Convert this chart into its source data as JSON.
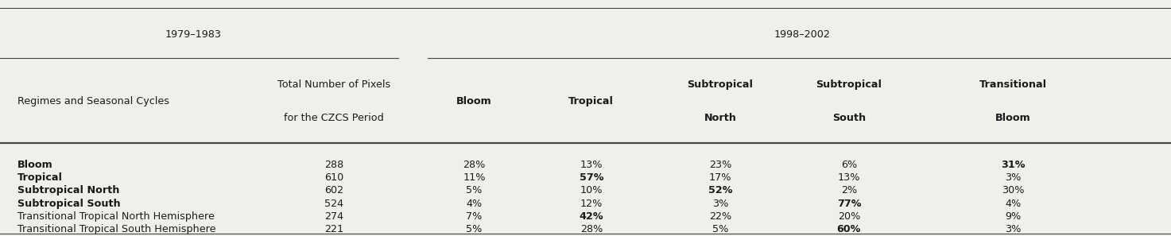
{
  "period1": "1979–1983",
  "period2": "1998–2002",
  "col_headers_line1": [
    "Regimes and Seasonal Cycles",
    "Total Number of Pixels",
    "Bloom",
    "Tropical",
    "Subtropical",
    "Subtropical",
    "Transitional"
  ],
  "col_headers_line2": [
    "",
    "for the CZCS Period",
    "",
    "",
    "North",
    "South",
    "Bloom"
  ],
  "col_headers_bold": [
    false,
    false,
    true,
    true,
    true,
    true,
    true
  ],
  "rows": [
    {
      "label": "Bloom",
      "bold": true,
      "pixels": "288",
      "bloom": "28%",
      "tropical": "13%",
      "subn": "23%",
      "subs": "6%",
      "trans": "31%",
      "bloom_bold": false,
      "tropical_bold": false,
      "subn_bold": false,
      "subs_bold": false,
      "trans_bold": true
    },
    {
      "label": "Tropical",
      "bold": true,
      "pixels": "610",
      "bloom": "11%",
      "tropical": "57%",
      "subn": "17%",
      "subs": "13%",
      "trans": "3%",
      "bloom_bold": false,
      "tropical_bold": true,
      "subn_bold": false,
      "subs_bold": false,
      "trans_bold": false
    },
    {
      "label": "Subtropical North",
      "bold": true,
      "pixels": "602",
      "bloom": "5%",
      "tropical": "10%",
      "subn": "52%",
      "subs": "2%",
      "trans": "30%",
      "bloom_bold": false,
      "tropical_bold": false,
      "subn_bold": true,
      "subs_bold": false,
      "trans_bold": false
    },
    {
      "label": "Subtropical South",
      "bold": true,
      "pixels": "524",
      "bloom": "4%",
      "tropical": "12%",
      "subn": "3%",
      "subs": "77%",
      "trans": "4%",
      "bloom_bold": false,
      "tropical_bold": false,
      "subn_bold": false,
      "subs_bold": true,
      "trans_bold": false
    },
    {
      "label": "Transitional Tropical North Hemisphere",
      "bold": false,
      "pixels": "274",
      "bloom": "7%",
      "tropical": "42%",
      "subn": "22%",
      "subs": "20%",
      "trans": "9%",
      "bloom_bold": false,
      "tropical_bold": true,
      "subn_bold": false,
      "subs_bold": false,
      "trans_bold": false
    },
    {
      "label": "Transitional Tropical South Hemisphere",
      "bold": false,
      "pixels": "221",
      "bloom": "5%",
      "tropical": "28%",
      "subn": "5%",
      "subs": "60%",
      "trans": "3%",
      "bloom_bold": false,
      "tropical_bold": false,
      "subn_bold": false,
      "subs_bold": true,
      "trans_bold": false
    }
  ],
  "bg_color": "#f0f0eb",
  "text_color": "#1a1a1a",
  "line_color": "#444444",
  "fontsize": 9.2,
  "figsize": [
    14.73,
    2.97
  ]
}
